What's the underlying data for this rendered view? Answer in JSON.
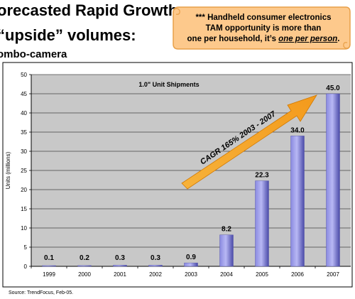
{
  "slide": {
    "title_line1": "orecasted Rapid Growth",
    "title_line2": "“upside” volumes:",
    "title_line3": "ombo-camera"
  },
  "callout": {
    "line1": "*** Handheld consumer electronics",
    "line2": "TAM opportunity is more than",
    "line3_prefix": "one per household, it’s ",
    "line3_emphasis": "one per person",
    "line3_suffix": ".",
    "fill_color": "#fdc98c",
    "border_color": "#e8a04a"
  },
  "chart_data": {
    "type": "bar",
    "title": "1.0\" Unit Shipments",
    "ylabel": "Units (millions)",
    "xlabel": "",
    "categories": [
      "1999",
      "2000",
      "2001",
      "2002",
      "2003",
      "2004",
      "2005",
      "2006",
      "2007"
    ],
    "values": [
      0.1,
      0.2,
      0.3,
      0.3,
      0.9,
      8.2,
      22.3,
      34.0,
      45.0
    ],
    "data_labels": [
      "0.1",
      "0.2",
      "0.3",
      "0.3",
      "0.9",
      "8.2",
      "22.3",
      "34.0",
      "45.0"
    ],
    "ylim": [
      0,
      50
    ],
    "yticks": [
      0,
      5,
      10,
      15,
      20,
      25,
      30,
      35,
      40,
      45,
      50
    ],
    "grid": true,
    "annotation": "CAGR 165% 2003 - 2007",
    "colors": {
      "bar": "#8a8ae0",
      "bar_dark": "#4a4aa8",
      "plot_background": "#c8c8c8",
      "arrow": "#f39a1c"
    }
  },
  "source": "Source:  TrendFocus, Feb-05."
}
